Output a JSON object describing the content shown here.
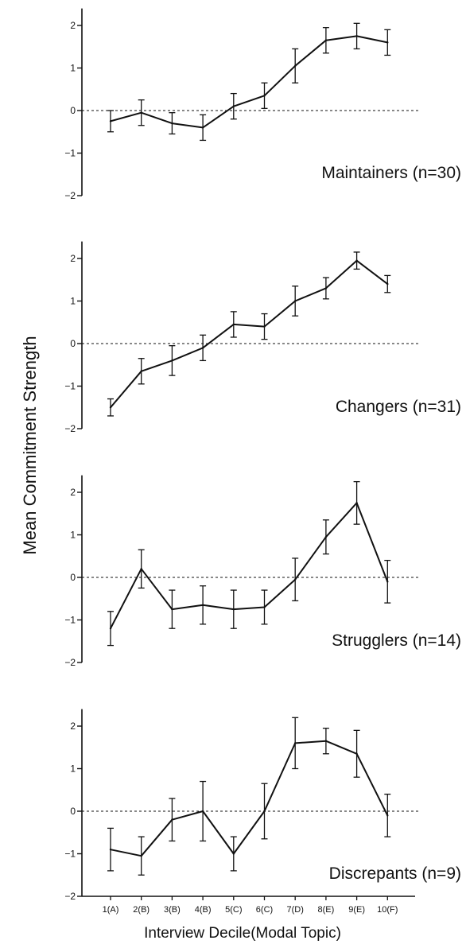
{
  "chart_data": {
    "type": "line",
    "ylabel": "Mean Commitment Strength",
    "xlabel": "Interview Decile(Modal Topic)",
    "x_tick_labels": [
      "1(A)",
      "2(B)",
      "3(B)",
      "4(B)",
      "5(C)",
      "6(C)",
      "7(D)",
      "8(E)",
      "9(E)",
      "10(F)"
    ],
    "x": [
      1,
      2,
      3,
      4,
      5,
      6,
      7,
      8,
      9,
      10
    ],
    "ylim": [
      -2,
      2.4
    ],
    "yticks": [
      -2,
      -1,
      0,
      1,
      2
    ],
    "reference_line": {
      "y": 0,
      "style": "dotted"
    },
    "error_bars": true,
    "panels": [
      {
        "label": "Maintainers (n=30)",
        "values": [
          -0.25,
          -0.05,
          -0.3,
          -0.4,
          0.1,
          0.35,
          1.05,
          1.65,
          1.75,
          1.6
        ],
        "error": [
          0.25,
          0.3,
          0.25,
          0.3,
          0.3,
          0.3,
          0.4,
          0.3,
          0.3,
          0.3
        ]
      },
      {
        "label": "Changers (n=31)",
        "values": [
          -1.5,
          -0.65,
          -0.4,
          -0.1,
          0.45,
          0.4,
          1.0,
          1.3,
          1.95,
          1.4
        ],
        "error": [
          0.2,
          0.3,
          0.35,
          0.3,
          0.3,
          0.3,
          0.35,
          0.25,
          0.2,
          0.2
        ]
      },
      {
        "label": "Strugglers (n=14)",
        "values": [
          -1.2,
          0.2,
          -0.75,
          -0.65,
          -0.75,
          -0.7,
          -0.05,
          0.95,
          1.75,
          -0.1
        ],
        "error": [
          0.4,
          0.45,
          0.45,
          0.45,
          0.45,
          0.4,
          0.5,
          0.4,
          0.5,
          0.5
        ]
      },
      {
        "label": "Discrepants (n=9)",
        "values": [
          -0.9,
          -1.05,
          -0.2,
          0.0,
          -1.0,
          0.0,
          1.6,
          1.65,
          1.35,
          -0.1
        ],
        "error": [
          0.5,
          0.45,
          0.5,
          0.7,
          0.4,
          0.65,
          0.6,
          0.3,
          0.55,
          0.5
        ]
      }
    ]
  }
}
